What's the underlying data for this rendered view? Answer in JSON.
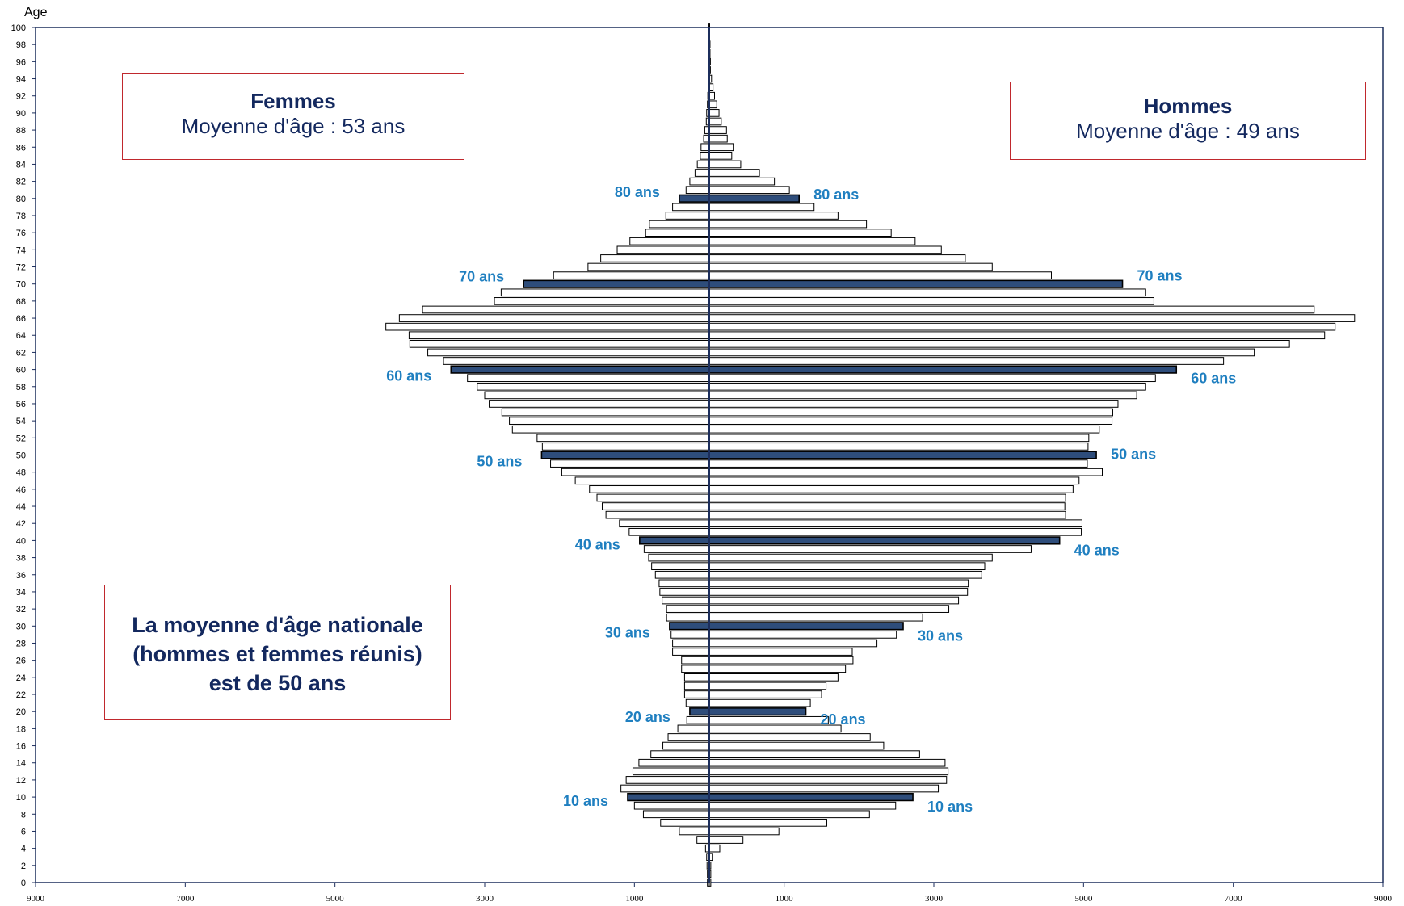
{
  "chart_data": {
    "type": "bar",
    "orientation": "horizontal",
    "subtype": "population-pyramid",
    "ylabel": "Age",
    "y_ticks": [
      0,
      2,
      4,
      6,
      8,
      10,
      12,
      14,
      16,
      18,
      20,
      22,
      24,
      26,
      28,
      30,
      32,
      34,
      36,
      38,
      40,
      42,
      44,
      46,
      48,
      50,
      52,
      54,
      56,
      58,
      60,
      62,
      64,
      66,
      68,
      70,
      72,
      74,
      76,
      78,
      80,
      82,
      84,
      86,
      88,
      90,
      92,
      94,
      96,
      98,
      100
    ],
    "x_tick_labels": [
      "9000",
      "7000",
      "5000",
      "3000",
      "1000",
      "1000",
      "3000",
      "5000",
      "7000",
      "9000"
    ],
    "xlim": [
      -9000,
      9000
    ],
    "ages": [
      0,
      1,
      2,
      3,
      4,
      5,
      6,
      7,
      8,
      9,
      10,
      11,
      12,
      13,
      14,
      15,
      16,
      17,
      18,
      19,
      20,
      21,
      22,
      23,
      24,
      25,
      26,
      27,
      28,
      29,
      30,
      31,
      32,
      33,
      34,
      35,
      36,
      37,
      38,
      39,
      40,
      41,
      42,
      43,
      44,
      45,
      46,
      47,
      48,
      49,
      50,
      51,
      52,
      53,
      54,
      55,
      56,
      57,
      58,
      59,
      60,
      61,
      62,
      63,
      64,
      65,
      66,
      67,
      68,
      69,
      70,
      71,
      72,
      73,
      74,
      75,
      76,
      77,
      78,
      79,
      80,
      81,
      82,
      83,
      84,
      85,
      86,
      87,
      88,
      89,
      90,
      91,
      92,
      93,
      94,
      95,
      96,
      97,
      98,
      99,
      100
    ],
    "highlighted_ages": [
      10,
      20,
      30,
      40,
      50,
      60,
      70,
      80
    ],
    "series": [
      {
        "name": "Femmes",
        "side": "left",
        "values": [
          25,
          25,
          30,
          35,
          50,
          165,
          400,
          650,
          880,
          1000,
          1090,
          1180,
          1110,
          1020,
          940,
          780,
          620,
          550,
          420,
          300,
          260,
          310,
          330,
          330,
          330,
          370,
          370,
          490,
          490,
          510,
          530,
          570,
          570,
          630,
          660,
          670,
          720,
          770,
          810,
          870,
          930,
          1070,
          1200,
          1380,
          1430,
          1500,
          1600,
          1790,
          1970,
          2120,
          2240,
          2230,
          2300,
          2630,
          2670,
          2770,
          2940,
          3000,
          3100,
          3230,
          3450,
          3550,
          3760,
          4000,
          4010,
          4320,
          4140,
          3830,
          2870,
          2780,
          2480,
          2080,
          1620,
          1450,
          1230,
          1060,
          850,
          800,
          580,
          490,
          400,
          310,
          260,
          190,
          160,
          120,
          110,
          75,
          60,
          40,
          35,
          25,
          20,
          15,
          15,
          10,
          10,
          5,
          5,
          5,
          5
        ]
      },
      {
        "name": "Hommes",
        "side": "right",
        "values": [
          20,
          20,
          20,
          40,
          140,
          450,
          930,
          1570,
          2140,
          2490,
          2720,
          3060,
          3170,
          3190,
          3150,
          2810,
          2330,
          2150,
          1760,
          1590,
          1290,
          1350,
          1500,
          1560,
          1720,
          1820,
          1920,
          1910,
          2240,
          2500,
          2590,
          2850,
          3200,
          3330,
          3450,
          3460,
          3640,
          3680,
          3780,
          4300,
          4680,
          4970,
          4980,
          4760,
          4750,
          4760,
          4860,
          4940,
          5250,
          5050,
          5170,
          5060,
          5070,
          5210,
          5380,
          5390,
          5460,
          5710,
          5830,
          5960,
          6240,
          6870,
          7280,
          7750,
          8220,
          8360,
          8620,
          8080,
          5940,
          5830,
          5520,
          4570,
          3780,
          3420,
          3100,
          2750,
          2430,
          2100,
          1720,
          1400,
          1200,
          1070,
          870,
          670,
          420,
          300,
          320,
          240,
          230,
          160,
          130,
          100,
          70,
          50,
          30,
          15,
          15,
          10,
          10,
          5,
          5
        ]
      }
    ],
    "age_labels_left": [
      "80 ans",
      "70 ans",
      "60 ans",
      "50 ans",
      "40 ans",
      "30 ans",
      "20 ans",
      "10 ans"
    ],
    "age_labels_right": [
      "80 ans",
      "70 ans",
      "60 ans",
      "50 ans",
      "40 ans",
      "30 ans",
      "20 ans",
      "10 ans"
    ],
    "annotations": {
      "femmes_title": "Femmes",
      "femmes_sub": "Moyenne d'âge : 53 ans",
      "hommes_title": "Hommes",
      "hommes_sub": "Moyenne d'âge : 49 ans",
      "national_line1": "La moyenne d'âge nationale",
      "national_line2": "(hommes et femmes réunis)",
      "national_line3": "est de 50 ans"
    },
    "colors": {
      "bar_fill": "#ffffff",
      "bar_highlight": "#2e4d7b",
      "bar_stroke": "#000000",
      "axis": "#1c2e5c",
      "age_label": "#1f7fc0",
      "box_border": "#c0282d",
      "box_text": "#13285e"
    }
  }
}
